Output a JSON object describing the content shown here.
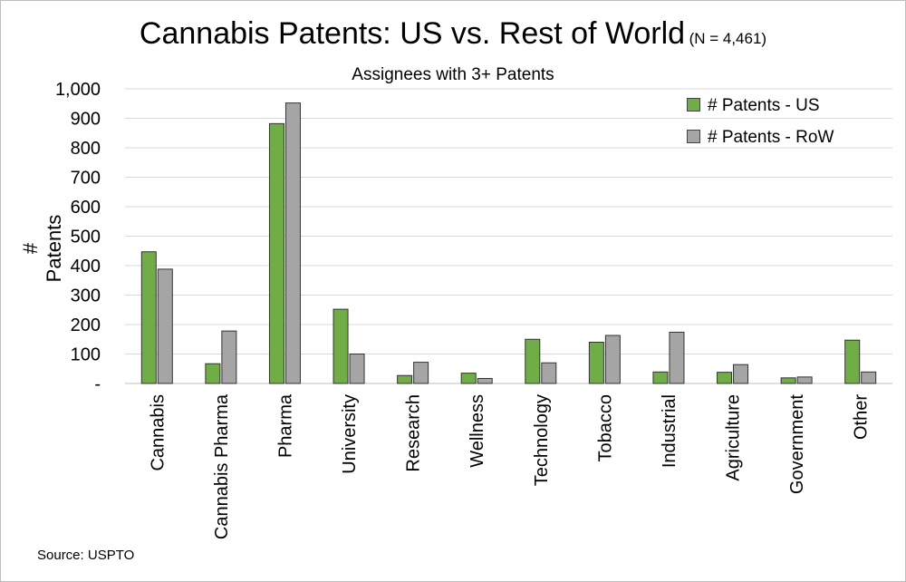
{
  "chart_data": {
    "type": "bar",
    "title": "Cannabis Patents: US vs. Rest of World",
    "title_note": "(N = 4,461)",
    "subtitle": "Assignees with 3+ Patents",
    "ylabel": "# Patents",
    "xlabel": "",
    "ylim": [
      0,
      1000
    ],
    "yticks": [
      0,
      100,
      200,
      300,
      400,
      500,
      600,
      700,
      800,
      900,
      1000
    ],
    "ytick_labels": [
      "-",
      "100",
      "200",
      "300",
      "400",
      "500",
      "600",
      "700",
      "800",
      "900",
      "1,000"
    ],
    "grid": true,
    "legend_position": "top-right",
    "categories": [
      "Cannabis",
      "Cannabis Pharma",
      "Pharma",
      "University",
      "Research",
      "Wellness",
      "Technology",
      "Tobacco",
      "Industrial",
      "Agriculture",
      "Government",
      "Other"
    ],
    "series": [
      {
        "name": "# Patents - US",
        "color": "#70ad47",
        "values": [
          447,
          67,
          882,
          252,
          27,
          35,
          150,
          140,
          39,
          38,
          19,
          147
        ]
      },
      {
        "name": "# Patents - RoW",
        "color": "#a5a5a5",
        "values": [
          388,
          178,
          952,
          100,
          72,
          17,
          70,
          163,
          174,
          64,
          22,
          39
        ]
      }
    ],
    "source": "Source: USPTO"
  }
}
